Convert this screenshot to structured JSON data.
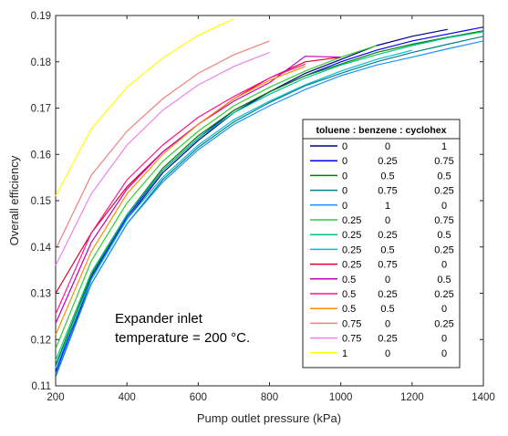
{
  "chart_data": {
    "type": "line",
    "xlabel": "Pump outlet pressure (kPa)",
    "ylabel": "Overall efficiency",
    "xlim": [
      200,
      1400
    ],
    "ylim": [
      0.11,
      0.19
    ],
    "xticks": [
      200,
      400,
      600,
      800,
      1000,
      1200,
      1400
    ],
    "yticks": [
      0.11,
      0.12,
      0.13,
      0.14,
      0.15,
      0.16,
      0.17,
      0.18,
      0.19
    ],
    "grid": false,
    "legend_position": "right",
    "legend_title": "toluene : benzene : cyclohex",
    "annotation": [
      "Expander inlet",
      "temperature = 200 °C."
    ],
    "series": [
      {
        "name": "0  0  1",
        "fractions": [
          "0",
          "0",
          "1"
        ],
        "color": "#000080",
        "x": [
          200,
          300,
          400,
          500,
          600,
          700,
          800,
          900,
          1000,
          1100,
          1200,
          1300
        ],
        "y": [
          0.112,
          0.133,
          0.146,
          0.156,
          0.163,
          0.169,
          0.1735,
          0.1775,
          0.1805,
          0.1835,
          0.1855,
          0.187
        ]
      },
      {
        "name": "0  0.25  0.75",
        "fractions": [
          "0",
          "0.25",
          "0.75"
        ],
        "color": "#0000ff",
        "x": [
          200,
          300,
          400,
          500,
          600,
          700,
          800,
          900,
          1000,
          1100,
          1200,
          1300,
          1400
        ],
        "y": [
          0.113,
          0.1335,
          0.1465,
          0.1565,
          0.1635,
          0.1695,
          0.1735,
          0.177,
          0.18,
          0.1825,
          0.1845,
          0.186,
          0.1875
        ]
      },
      {
        "name": "0  0.5  0.5",
        "fractions": [
          "0",
          "0.5",
          "0.5"
        ],
        "color": "#008000",
        "x": [
          200,
          300,
          400,
          500,
          600,
          700,
          800,
          900,
          1000,
          1100,
          1200,
          1300,
          1400
        ],
        "y": [
          0.1145,
          0.134,
          0.147,
          0.157,
          0.164,
          0.1695,
          0.1735,
          0.177,
          0.1795,
          0.182,
          0.1838,
          0.1853,
          0.1867
        ]
      },
      {
        "name": "0  0.75  0.25",
        "fractions": [
          "0",
          "0.75",
          "0.25"
        ],
        "color": "#008080",
        "x": [
          200,
          300,
          400,
          500,
          600,
          700,
          800,
          900,
          1000,
          1100,
          1200,
          1300,
          1400
        ],
        "y": [
          0.112,
          0.132,
          0.145,
          0.1545,
          0.1615,
          0.167,
          0.1712,
          0.1748,
          0.1775,
          0.18,
          0.182,
          0.1838,
          0.1855
        ]
      },
      {
        "name": "0  1  0",
        "fractions": [
          "0",
          "1",
          "0"
        ],
        "color": "#1e90ff",
        "x": [
          200,
          300,
          400,
          500,
          600,
          700,
          800,
          900,
          1000,
          1100,
          1200,
          1300,
          1400
        ],
        "y": [
          0.1125,
          0.132,
          0.145,
          0.154,
          0.161,
          0.1665,
          0.1705,
          0.174,
          0.177,
          0.1793,
          0.181,
          0.1828,
          0.1845
        ]
      },
      {
        "name": "0.25  0  0.75",
        "fractions": [
          "0.25",
          "0",
          "0.75"
        ],
        "color": "#32cd32",
        "x": [
          200,
          300,
          400,
          500,
          600,
          700,
          800,
          900,
          1000,
          1100
        ],
        "y": [
          0.118,
          0.137,
          0.1495,
          0.1585,
          0.165,
          0.1705,
          0.1745,
          0.178,
          0.181,
          0.1835
        ]
      },
      {
        "name": "0.25  0.25  0.5",
        "fractions": [
          "0.25",
          "0.25",
          "0.5"
        ],
        "color": "#00c48c",
        "x": [
          200,
          300,
          400,
          500,
          600,
          700,
          800,
          900,
          1000,
          1100,
          1200,
          1300,
          1400
        ],
        "y": [
          0.1155,
          0.1345,
          0.147,
          0.1565,
          0.1635,
          0.169,
          0.173,
          0.1765,
          0.1793,
          0.1815,
          0.1835,
          0.1852,
          0.1865
        ]
      },
      {
        "name": "0.25  0.5  0.25",
        "fractions": [
          "0.25",
          "0.5",
          "0.25"
        ],
        "color": "#00bcd4",
        "x": [
          200,
          300,
          400,
          500,
          600,
          700,
          800,
          900,
          1000,
          1100,
          1200
        ],
        "y": [
          0.114,
          0.133,
          0.146,
          0.155,
          0.162,
          0.1675,
          0.1715,
          0.175,
          0.178,
          0.1805,
          0.1825
        ]
      },
      {
        "name": "0.25  0.75  0",
        "fractions": [
          "0.25",
          "0.75",
          "0"
        ],
        "color": "#e0002a",
        "x": [
          200,
          300,
          400,
          500,
          600,
          700,
          800,
          900,
          1000
        ],
        "y": [
          0.13,
          0.143,
          0.153,
          0.1605,
          0.1665,
          0.172,
          0.1765,
          0.18,
          0.181
        ]
      },
      {
        "name": "0.5  0  0.5",
        "fractions": [
          "0.5",
          "0",
          "0.5"
        ],
        "color": "#c000c0",
        "x": [
          200,
          300,
          400,
          500,
          600,
          700,
          800,
          900,
          1000
        ],
        "y": [
          0.1235,
          0.141,
          0.1525,
          0.1605,
          0.1665,
          0.1715,
          0.1755,
          0.1812,
          0.181
        ]
      },
      {
        "name": "0.5  0.25  0.25",
        "fractions": [
          "0.5",
          "0.25",
          "0.25"
        ],
        "color": "#ff1493",
        "x": [
          200,
          300,
          400,
          500,
          600,
          700,
          800,
          900
        ],
        "y": [
          0.1255,
          0.143,
          0.1545,
          0.162,
          0.168,
          0.1725,
          0.1765,
          0.1795
        ]
      },
      {
        "name": "0.5  0.5  0",
        "fractions": [
          "0.5",
          "0.5",
          "0"
        ],
        "color": "#ff8c00",
        "x": [
          200,
          300,
          400,
          500,
          600,
          700,
          800,
          900
        ],
        "y": [
          0.121,
          0.139,
          0.1515,
          0.16,
          0.1665,
          0.172,
          0.176,
          0.179
        ]
      },
      {
        "name": "0.75  0  0.25",
        "fractions": [
          "0.75",
          "0",
          "0.25"
        ],
        "color": "#f08080",
        "x": [
          200,
          300,
          400,
          500,
          600,
          700,
          800
        ],
        "y": [
          0.1395,
          0.1555,
          0.165,
          0.172,
          0.1775,
          0.1815,
          0.1845
        ]
      },
      {
        "name": "0.75  0.25  0",
        "fractions": [
          "0.75",
          "0.25",
          "0"
        ],
        "color": "#ee82ee",
        "x": [
          200,
          300,
          400,
          500,
          600,
          700,
          800
        ],
        "y": [
          0.136,
          0.1515,
          0.162,
          0.1695,
          0.175,
          0.179,
          0.182
        ]
      },
      {
        "name": "1  0  0",
        "fractions": [
          "1",
          "0",
          "0"
        ],
        "color": "#ffff00",
        "x": [
          200,
          300,
          400,
          500,
          600,
          700
        ],
        "y": [
          0.151,
          0.1655,
          0.1745,
          0.1808,
          0.1857,
          0.1893
        ]
      }
    ]
  }
}
